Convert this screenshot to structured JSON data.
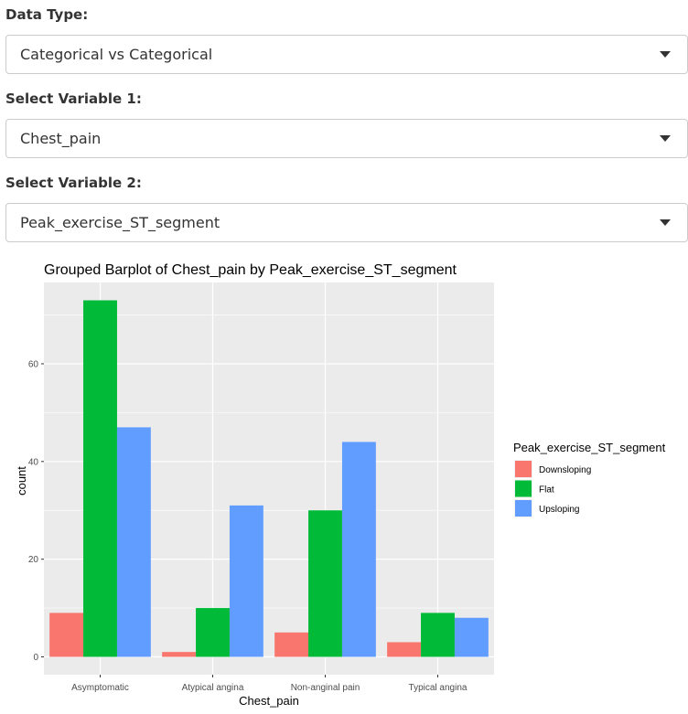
{
  "controls": [
    {
      "label": "Data Type:",
      "value": "Categorical vs Categorical"
    },
    {
      "label": "Select Variable 1:",
      "value": "Chest_pain"
    },
    {
      "label": "Select Variable 2:",
      "value": "Peak_exercise_ST_segment"
    }
  ],
  "colors": {
    "Downsloping": "#F8766D",
    "Flat": "#00BA38",
    "Upsloping": "#619CFF"
  },
  "chart_data": {
    "type": "bar",
    "title": "Grouped Barplot of Chest_pain by Peak_exercise_ST_segment",
    "xlabel": "Chest_pain",
    "ylabel": "count",
    "categories": [
      "Asymptomatic",
      "Atypical angina",
      "Non-anginal pain",
      "Typical angina"
    ],
    "series": [
      {
        "name": "Downsloping",
        "values": [
          9,
          1,
          5,
          3
        ]
      },
      {
        "name": "Flat",
        "values": [
          73,
          10,
          30,
          9
        ]
      },
      {
        "name": "Upsloping",
        "values": [
          47,
          31,
          44,
          8
        ]
      }
    ],
    "yticks": [
      0,
      20,
      40,
      60
    ],
    "ylim": [
      -3.65,
      76.65
    ],
    "legend_title": "Peak_exercise_ST_segment",
    "legend_position": "right",
    "grid": true
  }
}
